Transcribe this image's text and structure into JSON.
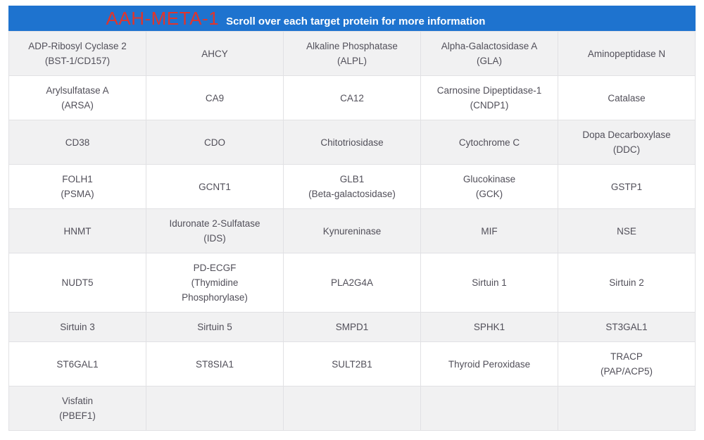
{
  "header": {
    "title": "AAH-META-1",
    "subtitle": "Scroll over each target protein for more information"
  },
  "colors": {
    "header_bg": "#1e73cf",
    "title_red": "#e0352c",
    "subtitle_white": "#ffffff",
    "row_stripe_gray": "#f1f1f2",
    "row_white": "#ffffff",
    "cell_border": "#e1e1e4",
    "cell_text": "#514f59"
  },
  "table": {
    "columns": 5,
    "rows": [
      [
        "ADP-Ribosyl Cyclase 2\n(BST-1/CD157)",
        "AHCY",
        "Alkaline Phosphatase\n(ALPL)",
        "Alpha-Galactosidase A\n(GLA)",
        "Aminopeptidase N"
      ],
      [
        "Arylsulfatase A\n(ARSA)",
        "CA9",
        "CA12",
        "Carnosine Dipeptidase-1\n(CNDP1)",
        "Catalase"
      ],
      [
        "CD38",
        "CDO",
        "Chitotriosidase",
        "Cytochrome C",
        "Dopa Decarboxylase\n(DDC)"
      ],
      [
        "FOLH1\n(PSMA)",
        "GCNT1",
        "GLB1\n(Beta-galactosidase)",
        "Glucokinase\n(GCK)",
        "GSTP1"
      ],
      [
        "HNMT",
        "Iduronate 2-Sulfatase\n(IDS)",
        "Kynureninase",
        "MIF",
        "NSE"
      ],
      [
        "NUDT5",
        "PD-ECGF\n(Thymidine\nPhosphorylase)",
        "PLA2G4A",
        "Sirtuin 1",
        "Sirtuin 2"
      ],
      [
        "Sirtuin 3",
        "Sirtuin 5",
        "SMPD1",
        "SPHK1",
        "ST3GAL1"
      ],
      [
        "ST6GAL1",
        "ST8SIA1",
        "SULT2B1",
        "Thyroid Peroxidase",
        "TRACP\n(PAP/ACP5)"
      ],
      [
        "Visfatin\n(PBEF1)",
        "",
        "",
        "",
        ""
      ]
    ]
  }
}
